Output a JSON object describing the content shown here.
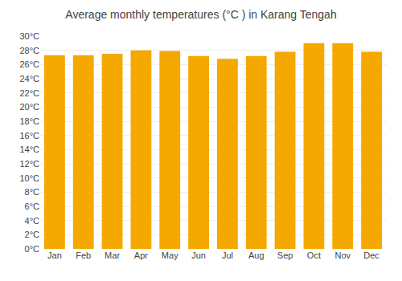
{
  "chart_data": {
    "type": "bar",
    "title": "Average monthly temperatures (°C ) in Karang Tengah",
    "categories": [
      "Jan",
      "Feb",
      "Mar",
      "Apr",
      "May",
      "Jun",
      "Jul",
      "Aug",
      "Sep",
      "Oct",
      "Nov",
      "Dec"
    ],
    "values": [
      27.3,
      27.3,
      27.5,
      28.0,
      27.9,
      27.2,
      26.8,
      27.2,
      27.8,
      29.0,
      29.0,
      27.8
    ],
    "color": "#F5A800",
    "ylim": [
      0,
      30
    ],
    "yticks": [
      {
        "value": 0,
        "label": "0°C"
      },
      {
        "value": 2,
        "label": "2°C"
      },
      {
        "value": 4,
        "label": "4°C"
      },
      {
        "value": 6,
        "label": "6°C"
      },
      {
        "value": 8,
        "label": "8°C"
      },
      {
        "value": 10,
        "label": "10°C"
      },
      {
        "value": 12,
        "label": "12°C"
      },
      {
        "value": 14,
        "label": "14°C"
      },
      {
        "value": 16,
        "label": "16°C"
      },
      {
        "value": 18,
        "label": "18°C"
      },
      {
        "value": 20,
        "label": "20°C"
      },
      {
        "value": 22,
        "label": "22°C"
      },
      {
        "value": 24,
        "label": "24°C"
      },
      {
        "value": 26,
        "label": "26°C"
      },
      {
        "value": 28,
        "label": "28°C"
      },
      {
        "value": 30,
        "label": "30°C"
      }
    ],
    "grid": true
  }
}
